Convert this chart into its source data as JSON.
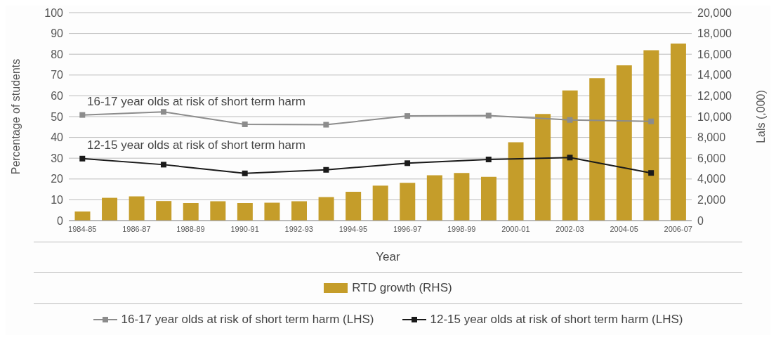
{
  "chart_data": {
    "type": "bar",
    "xlabel": "Year",
    "ylabel": "Percentage of students",
    "y2label": "Lals (,000)",
    "categories": [
      "1984-85",
      null,
      "1986-87",
      null,
      "1988-89",
      null,
      "1990-91",
      null,
      "1992-93",
      null,
      "1994-95",
      null,
      "1996-97",
      null,
      "1998-99",
      null,
      "2000-01",
      null,
      "2002-03",
      null,
      "2004-05",
      null,
      "2006-07"
    ],
    "series": [
      {
        "name": "RTD growth (RHS)",
        "axis": "y2",
        "color": "#c59d2a",
        "values": [
          870,
          2190,
          2330,
          1880,
          1690,
          1860,
          1690,
          1720,
          1860,
          2260,
          2770,
          3360,
          3640,
          4350,
          4580,
          4200,
          7530,
          10260,
          12520,
          13700,
          14940,
          16390,
          17030
        ]
      },
      {
        "name": "16-17 year olds at risk of short term harm (LHS)",
        "type": "line",
        "color": "#8c8c8c",
        "values": [
          50.8,
          null,
          null,
          52.3,
          null,
          null,
          46.3,
          null,
          null,
          46.1,
          null,
          null,
          50.3,
          null,
          null,
          50.5,
          null,
          null,
          48.4,
          null,
          null,
          47.7,
          null
        ]
      },
      {
        "name": "12-15 year olds at risk of short term harm (LHS)",
        "type": "line",
        "color": "#1a1a1a",
        "values": [
          29.8,
          null,
          null,
          26.9,
          null,
          null,
          22.7,
          null,
          null,
          24.4,
          null,
          null,
          27.6,
          null,
          null,
          29.4,
          null,
          null,
          30.3,
          null,
          null,
          22.9,
          null
        ]
      }
    ],
    "ylim": [
      0,
      100
    ],
    "yticks": [
      0,
      10,
      20,
      30,
      40,
      50,
      60,
      70,
      80,
      90,
      100
    ],
    "y2lim": [
      0,
      20000
    ],
    "y2ticks": [
      0,
      {
        "value": 2000,
        "label": "2,000"
      },
      {
        "value": 4000,
        "label": "4,000"
      },
      {
        "value": 6000,
        "label": "6,000"
      },
      {
        "value": 8000,
        "label": "8,000"
      },
      {
        "value": 10000,
        "label": "10,000"
      },
      {
        "value": 12000,
        "label": "12,000"
      },
      {
        "value": 14000,
        "label": "14,000"
      },
      {
        "value": 16000,
        "label": "16,000"
      },
      {
        "value": 18000,
        "label": "18,000"
      },
      {
        "value": 20000,
        "label": "20,000"
      }
    ],
    "annotations": [
      "16-17 year olds at risk of short term harm",
      "12-15 year olds at risk of short term harm"
    ],
    "grid": "y",
    "legend": "bottom",
    "marker": "square",
    "line_style": "solid"
  }
}
